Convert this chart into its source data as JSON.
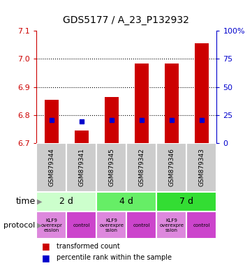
{
  "title": "GDS5177 / A_23_P132932",
  "samples": [
    "GSM879344",
    "GSM879341",
    "GSM879345",
    "GSM879342",
    "GSM879346",
    "GSM879343"
  ],
  "bar_bottoms": [
    6.7,
    6.7,
    6.7,
    6.7,
    6.7,
    6.7
  ],
  "bar_tops": [
    6.855,
    6.745,
    6.865,
    6.985,
    6.985,
    7.055
  ],
  "blue_marks": [
    6.782,
    6.778,
    6.782,
    6.782,
    6.782,
    6.782
  ],
  "ylim_left": [
    6.7,
    7.1
  ],
  "ylim_right": [
    0,
    100
  ],
  "yticks_left": [
    6.7,
    6.8,
    6.9,
    7.0,
    7.1
  ],
  "yticks_right": [
    0,
    25,
    50,
    75,
    100
  ],
  "ytick_right_labels": [
    "0",
    "25",
    "50",
    "75",
    "100%"
  ],
  "left_color": "#cc0000",
  "right_color": "#0000cc",
  "time_groups": [
    {
      "label": "2 d",
      "start": 0,
      "end": 2,
      "color": "#ccffcc"
    },
    {
      "label": "4 d",
      "start": 2,
      "end": 4,
      "color": "#66ee66"
    },
    {
      "label": "7 d",
      "start": 4,
      "end": 6,
      "color": "#33dd33"
    }
  ],
  "protocol_labels": [
    "KLF9\noverexpr\nession",
    "control",
    "KLF9\noverexpre\nssion",
    "control",
    "KLF9\noverexpre\nssion",
    "control"
  ],
  "protocol_colors": [
    "#dd88dd",
    "#cc44cc",
    "#dd88dd",
    "#cc44cc",
    "#dd88dd",
    "#cc44cc"
  ],
  "bar_width": 0.45,
  "sample_box_color": "#cccccc",
  "grid_hlines": [
    6.8,
    6.9,
    7.0
  ]
}
